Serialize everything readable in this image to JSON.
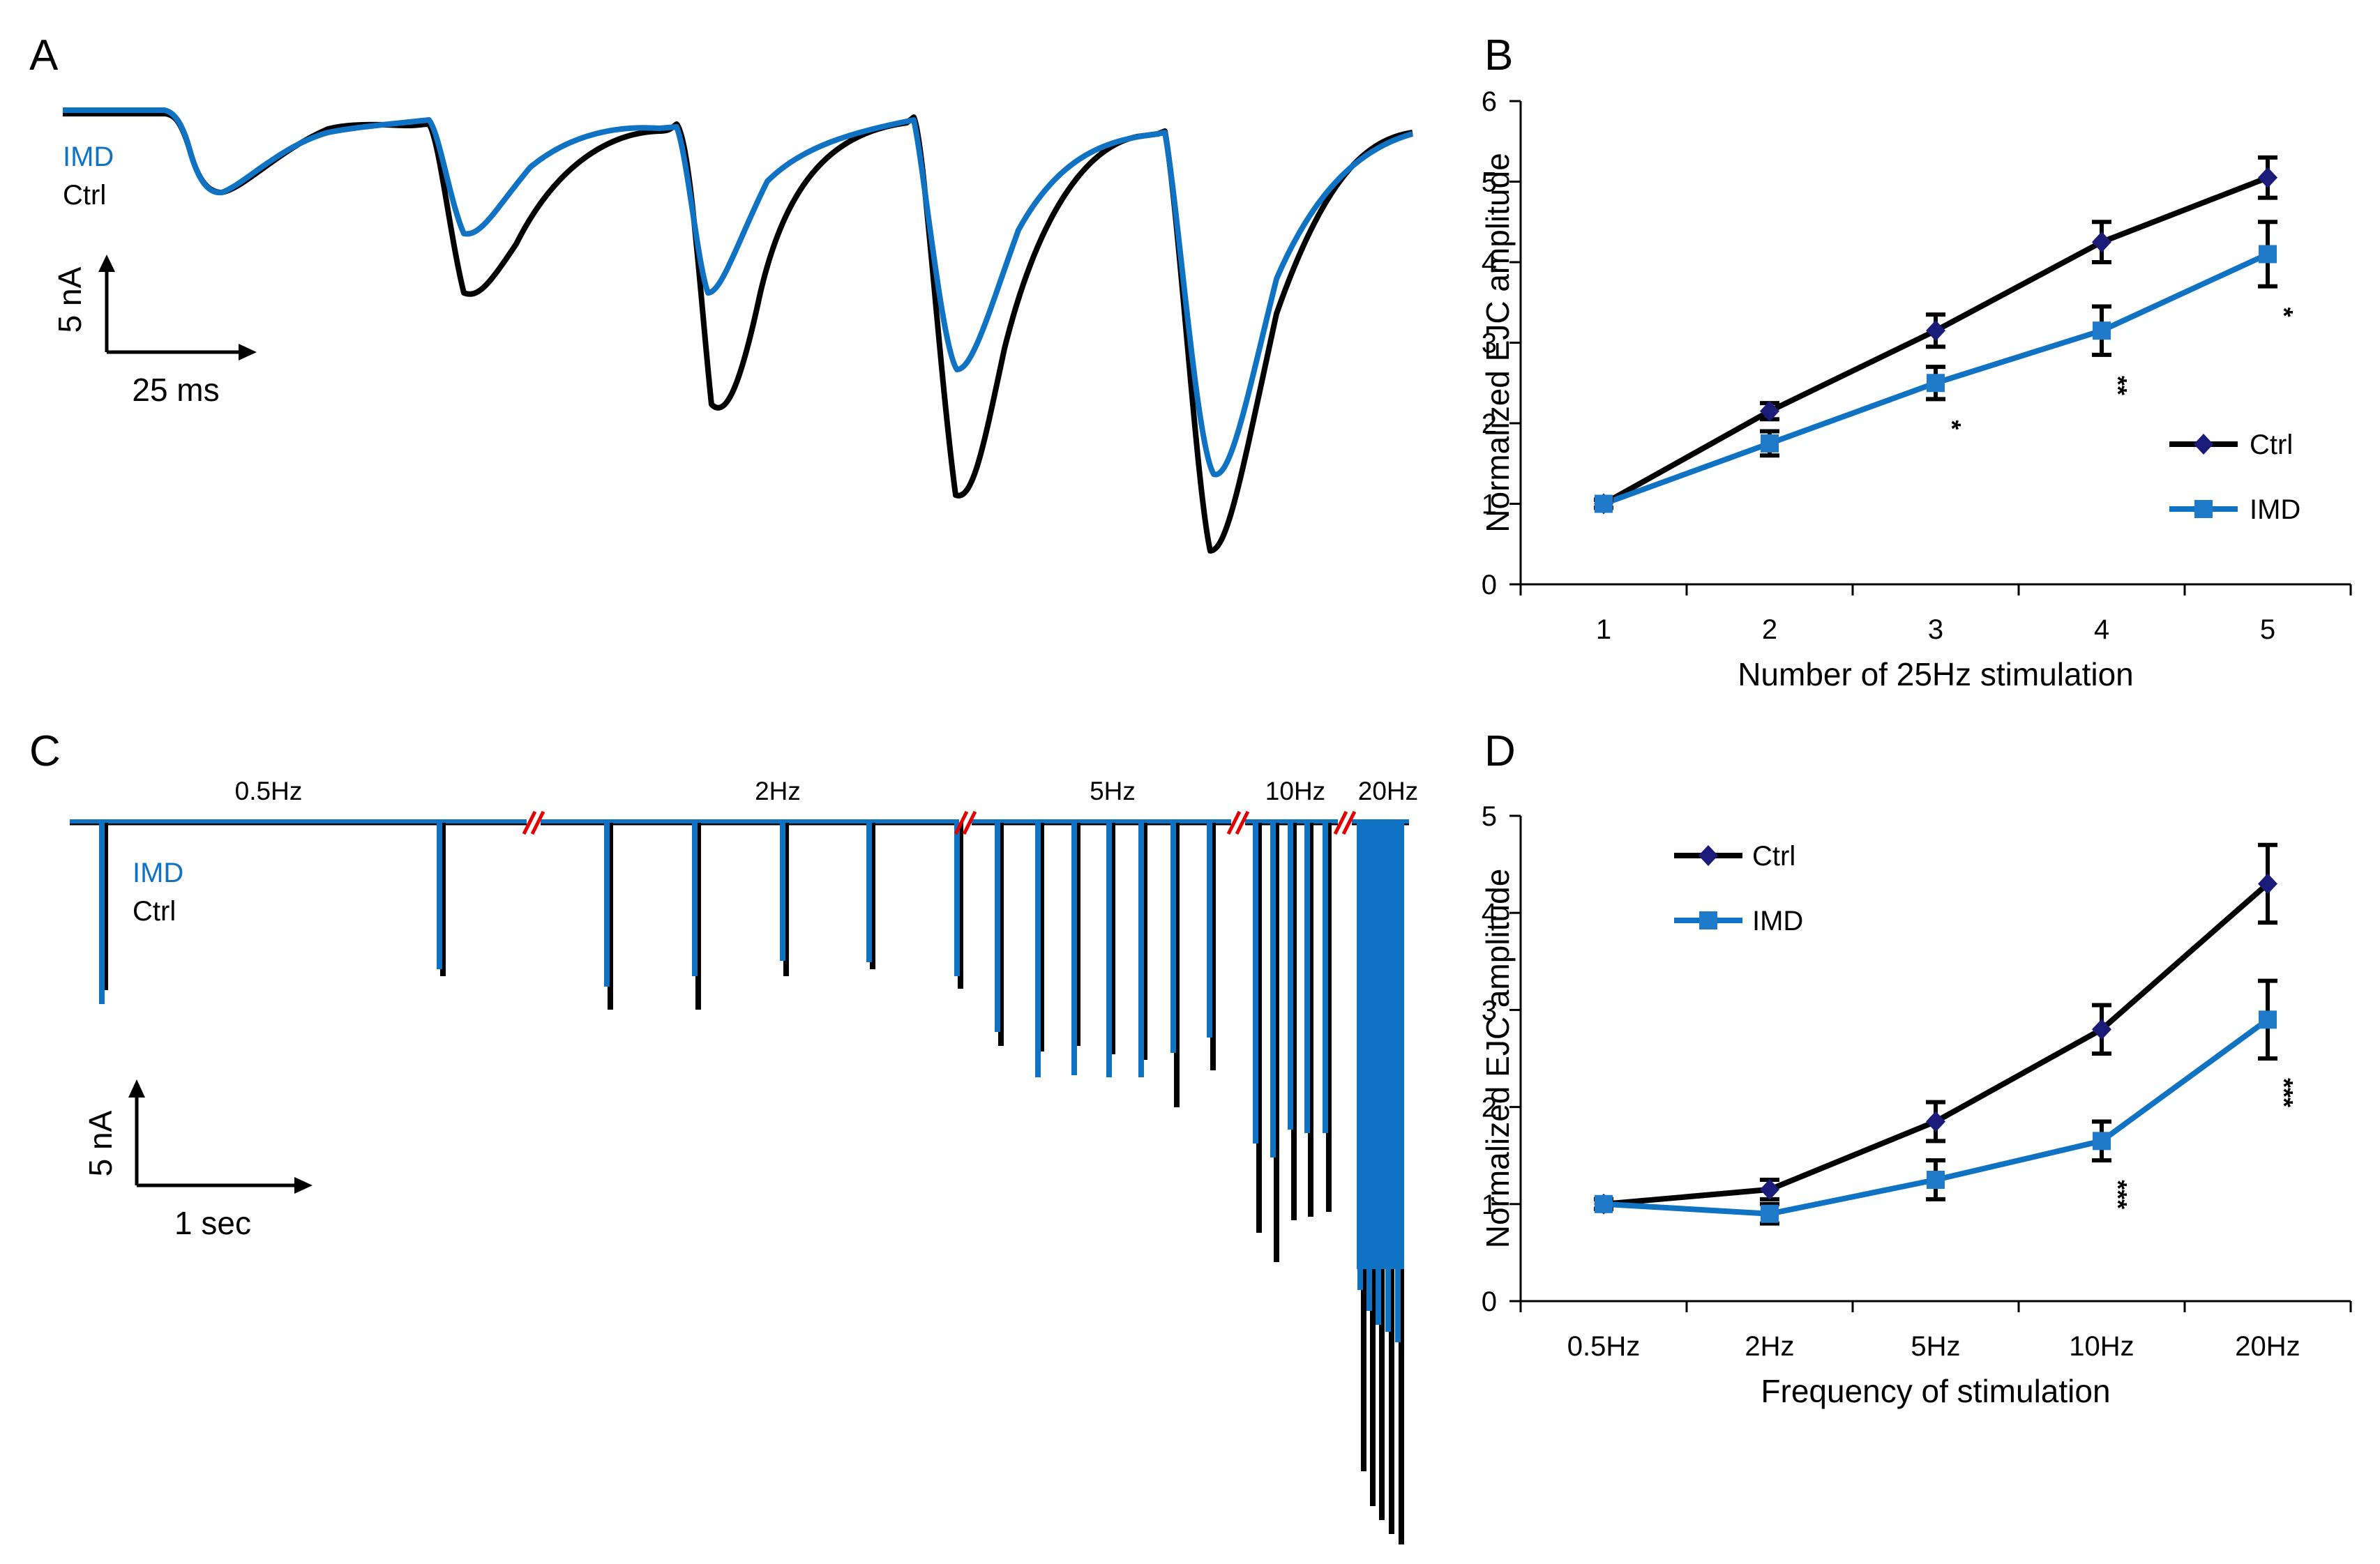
{
  "panels": {
    "a": {
      "label": "A",
      "legend": {
        "imd": "IMD",
        "ctrl": "Ctrl"
      },
      "scale": {
        "y": "5 nA",
        "x": "25 ms"
      }
    },
    "b": {
      "label": "B"
    },
    "c": {
      "label": "C",
      "legend": {
        "imd": "IMD",
        "ctrl": "Ctrl"
      },
      "scale": {
        "y": "5 nA",
        "x": "1 sec"
      },
      "freq_labels": [
        "0.5Hz",
        "2Hz",
        "5Hz",
        "10Hz",
        "20Hz"
      ]
    },
    "d": {
      "label": "D"
    }
  },
  "colors": {
    "ctrl": "#000000",
    "imd": "#0f72c2",
    "ctrl_marker": "#1b1b7a",
    "imd_marker": "#1f7ac9",
    "break_mark": "#e00000"
  },
  "chart_data": [
    {
      "id": "b",
      "type": "line",
      "xlabel": "Number of 25Hz stimulation",
      "ylabel": "Normalized  EJC amplitude",
      "categories": [
        "1",
        "2",
        "3",
        "4",
        "5"
      ],
      "ylim": [
        0,
        6
      ],
      "yticks": [
        "0",
        "1",
        "2",
        "3",
        "4",
        "5",
        "6"
      ],
      "legend_position": "right",
      "series": [
        {
          "name": "Ctrl",
          "values": [
            1.0,
            2.15,
            3.15,
            4.25,
            5.05
          ],
          "errors": [
            0.05,
            0.1,
            0.2,
            0.25,
            0.25
          ],
          "marker": "diamond"
        },
        {
          "name": "IMD",
          "values": [
            1.0,
            1.75,
            2.5,
            3.15,
            4.1
          ],
          "errors": [
            0.05,
            0.15,
            0.2,
            0.3,
            0.4
          ],
          "marker": "square"
        }
      ],
      "annotations": [
        {
          "category": "3",
          "text": "*"
        },
        {
          "category": "4",
          "text": "**"
        },
        {
          "category": "5",
          "text": "*"
        }
      ]
    },
    {
      "id": "d",
      "type": "line",
      "xlabel": "Frequency of stimulation",
      "ylabel": "Normalized  EJC amplitude",
      "categories": [
        "0.5Hz",
        "2Hz",
        "5Hz",
        "10Hz",
        "20Hz"
      ],
      "ylim": [
        0,
        5
      ],
      "yticks": [
        "0",
        "1",
        "2",
        "3",
        "4",
        "5"
      ],
      "legend_position": "top-left",
      "series": [
        {
          "name": "Ctrl",
          "values": [
            1.0,
            1.15,
            1.85,
            2.8,
            4.3
          ],
          "errors": [
            0.05,
            0.1,
            0.2,
            0.25,
            0.4
          ],
          "marker": "diamond"
        },
        {
          "name": "IMD",
          "values": [
            1.0,
            0.9,
            1.25,
            1.65,
            2.9
          ],
          "errors": [
            0.05,
            0.1,
            0.2,
            0.2,
            0.4
          ],
          "marker": "square"
        }
      ],
      "annotations": [
        {
          "category": "10Hz",
          "text": "***"
        },
        {
          "category": "20Hz",
          "text": "***"
        }
      ]
    }
  ]
}
